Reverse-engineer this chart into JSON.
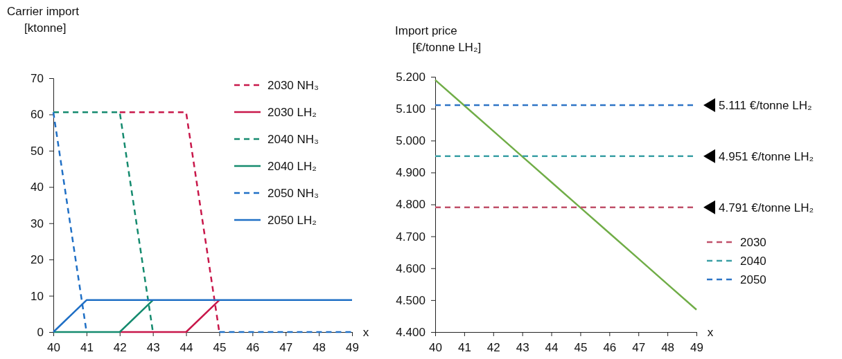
{
  "chart_data": [
    {
      "type": "line",
      "ylabel": "Carrier import [ktonne]",
      "xlabel": "x",
      "x": [
        40,
        41,
        42,
        43,
        44,
        45,
        46,
        47,
        48,
        49
      ],
      "xlim": [
        40,
        49
      ],
      "xticks": [
        40,
        41,
        42,
        43,
        44,
        45,
        46,
        47,
        48,
        49
      ],
      "ylim": [
        0,
        70
      ],
      "yticks": [
        0,
        10,
        20,
        30,
        40,
        50,
        60,
        70
      ],
      "legend": "top right",
      "series": [
        {
          "name": "2030 NH₃",
          "color": "#c8174a",
          "line_style": "dashed",
          "values": [
            null,
            null,
            60.6,
            60.6,
            60.6,
            0,
            null,
            null,
            null,
            null
          ]
        },
        {
          "name": "2030 LH₂",
          "color": "#c8174a",
          "line_style": "solid",
          "values": [
            null,
            null,
            0,
            0,
            0,
            8.8,
            null,
            null,
            null,
            null
          ]
        },
        {
          "name": "2040 NH₃",
          "color": "#148a6e",
          "line_style": "dashed",
          "values": [
            60.6,
            60.6,
            60.6,
            0,
            null,
            null,
            null,
            null,
            null,
            null
          ]
        },
        {
          "name": "2040 LH₂",
          "color": "#148a6e",
          "line_style": "solid",
          "values": [
            0,
            0,
            0,
            8.8,
            null,
            null,
            null,
            null,
            null,
            null
          ]
        },
        {
          "name": "2050 NH₃",
          "color": "#1f6fc5",
          "line_style": "dashed",
          "values": [
            60.6,
            0,
            null,
            null,
            null,
            0,
            0,
            0,
            0,
            0
          ]
        },
        {
          "name": "2050 LH₂",
          "color": "#1f6fc5",
          "line_style": "solid",
          "values": [
            0,
            8.8,
            8.8,
            8.8,
            8.8,
            8.8,
            8.8,
            8.8,
            8.8,
            8.8
          ]
        }
      ]
    },
    {
      "type": "line",
      "ylabel": "Import price [€/tonne LH₂]",
      "xlabel": "x",
      "x": [
        40,
        41,
        42,
        43,
        44,
        45,
        46,
        47,
        48,
        49
      ],
      "xlim": [
        40,
        49
      ],
      "xticks": [
        40,
        41,
        42,
        43,
        44,
        45,
        46,
        47,
        48,
        49
      ],
      "ylim": [
        4400,
        5200
      ],
      "yticks": [
        {
          "value": 4400,
          "label": "4.400"
        },
        {
          "value": 4500,
          "label": "4.500"
        },
        {
          "value": 4600,
          "label": "4.600"
        },
        {
          "value": 4700,
          "label": "4.700"
        },
        {
          "value": 4800,
          "label": "4.800"
        },
        {
          "value": 4900,
          "label": "4.900"
        },
        {
          "value": 5000,
          "label": "5.000"
        },
        {
          "value": 5100,
          "label": "5.100"
        },
        {
          "value": 5200,
          "label": "5.200"
        }
      ],
      "legend": "right",
      "series": [
        {
          "color": "#70ad47",
          "line_style": "solid",
          "values": [
            5190,
            5110,
            5030,
            4950,
            4870,
            4790,
            4710,
            4630,
            4550,
            4470
          ]
        },
        {
          "name": "2030",
          "color": "#c0506a",
          "line_style": "dashed",
          "values": [
            4791,
            4791,
            4791,
            4791,
            4791,
            4791,
            4791,
            4791,
            4791,
            4791
          ]
        },
        {
          "name": "2040",
          "color": "#3a9fa5",
          "line_style": "dashed",
          "values": [
            4951,
            4951,
            4951,
            4951,
            4951,
            4951,
            4951,
            4951,
            4951,
            4951
          ]
        },
        {
          "name": "2050",
          "color": "#2e75c6",
          "line_style": "dashed",
          "values": [
            5111,
            5111,
            5111,
            5111,
            5111,
            5111,
            5111,
            5111,
            5111,
            5111
          ]
        }
      ],
      "annotations": [
        "5.111 €/tonne LH₂",
        "4.951 €/tonne LH₂",
        "4.791 €/tonne LH₂"
      ]
    }
  ]
}
